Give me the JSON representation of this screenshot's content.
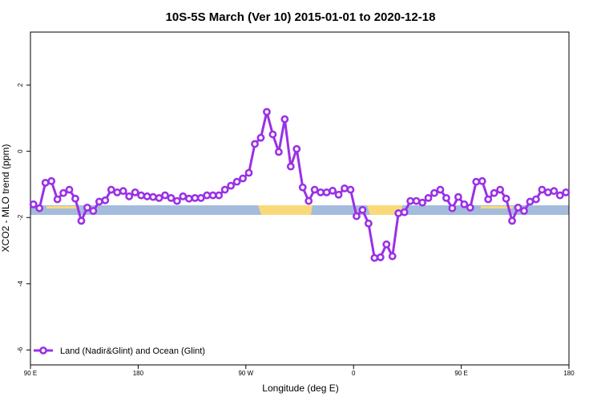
{
  "chart_data": {
    "type": "line",
    "title": "10S-5S March (Ver 10)   2015-01-01 to 2020-12-18",
    "x_label": "Longitude (deg E)",
    "y_label": "XCO2 - MLO trend (ppm)",
    "xlim": [
      90,
      540
    ],
    "ylim": [
      -6.45,
      3.6
    ],
    "xticks": [
      {
        "value": 90,
        "label": "90 E"
      },
      180,
      {
        "value": 270,
        "label": "90 W"
      },
      {
        "value": 360,
        "label": "0"
      },
      {
        "value": 450,
        "label": "90 E"
      },
      {
        "value": 540,
        "label": "180"
      }
    ],
    "yticks": [
      2,
      0,
      -2,
      -4,
      -6
    ],
    "legend": "bottom-left",
    "x": [
      92.5,
      97.5,
      102.5,
      107.5,
      112.5,
      117.5,
      122.5,
      127.5,
      132.5,
      137.5,
      142.5,
      147.5,
      152.5,
      157.5,
      162.5,
      167.5,
      172.5,
      177.5,
      182.5,
      187.5,
      192.5,
      197.5,
      202.5,
      207.5,
      212.5,
      217.5,
      222.5,
      227.5,
      232.5,
      237.5,
      242.5,
      247.5,
      252.5,
      257.5,
      262.5,
      267.5,
      272.5,
      277.5,
      282.5,
      287.5,
      292.5,
      297.5,
      302.5,
      307.5,
      312.5,
      317.5,
      322.5,
      327.5,
      332.5,
      337.5,
      342.5,
      347.5,
      352.5,
      357.5,
      362.5,
      367.5,
      372.5,
      377.5,
      382.5,
      387.5,
      392.5,
      397.5,
      402.5,
      407.5,
      412.5,
      417.5,
      422.5,
      427.5,
      432.5,
      437.5,
      442.5,
      447.5,
      452.5,
      457.5,
      462.5,
      467.5,
      472.5,
      477.5,
      482.5,
      487.5,
      492.5,
      497.5,
      502.5,
      507.5,
      512.5,
      517.5,
      522.5,
      527.5,
      532.5,
      537.5
    ],
    "series": [
      {
        "name": "Land (Nadir&Glint) and Ocean (Glint)",
        "color": "#9b30e6",
        "values": [
          -1.6,
          -1.72,
          -0.95,
          -0.9,
          -1.45,
          -1.26,
          -1.16,
          -1.43,
          -2.1,
          -1.7,
          -1.8,
          -1.52,
          -1.48,
          -1.16,
          -1.24,
          -1.2,
          -1.36,
          -1.24,
          -1.33,
          -1.36,
          -1.38,
          -1.41,
          -1.33,
          -1.41,
          -1.5,
          -1.36,
          -1.43,
          -1.41,
          -1.41,
          -1.33,
          -1.33,
          -1.33,
          -1.16,
          -1.04,
          -0.92,
          -0.82,
          -0.65,
          0.22,
          0.41,
          1.19,
          0.51,
          -0.02,
          0.97,
          -0.46,
          0.07,
          -1.09,
          -1.5,
          -1.16,
          -1.24,
          -1.24,
          -1.19,
          -1.31,
          -1.12,
          -1.16,
          -1.96,
          -1.77,
          -2.18,
          -3.22,
          -3.2,
          -2.81,
          -3.17,
          -1.87,
          -1.84,
          -1.5,
          -1.5,
          -1.55,
          -1.41,
          -1.26,
          -1.16,
          -1.41,
          -1.72,
          -1.38,
          -1.6,
          -1.7,
          -0.92,
          -0.9,
          -1.45,
          -1.26,
          -1.16,
          -1.43,
          -2.1,
          -1.7,
          -1.8,
          -1.52,
          -1.45,
          -1.16,
          -1.24,
          -1.2,
          -1.33,
          -1.24
        ]
      }
    ]
  }
}
